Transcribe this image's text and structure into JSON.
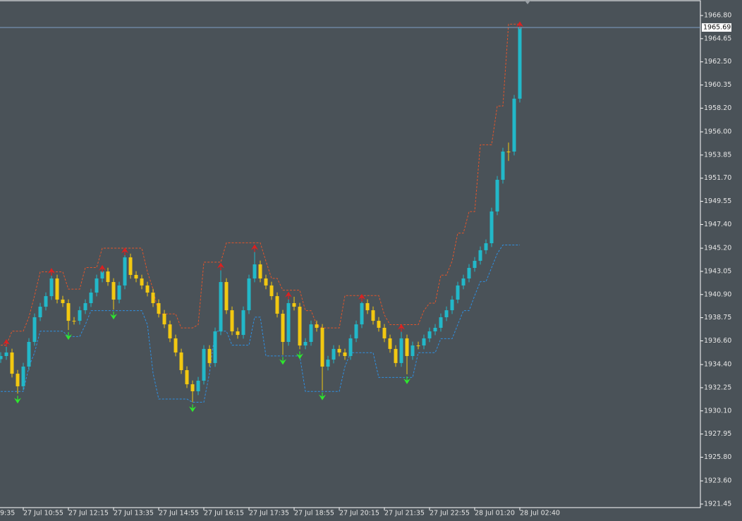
{
  "chart_data": {
    "type": "candlestick",
    "open": [
      1934.9,
      1935.19,
      1935.52,
      1933.55,
      1932.38,
      1934.21,
      1936.5,
      1938.79,
      1939.77,
      1940.75,
      1942.39,
      1940.43,
      1940.1,
      1938.46,
      1938.46,
      1939.44,
      1940.1,
      1941.08,
      1942.39,
      1943.04,
      1942.06,
      1940.43,
      1941.74,
      1944.35,
      1942.72,
      1942.39,
      1941.74,
      1941.08,
      1940.1,
      1939.12,
      1938.13,
      1936.83,
      1935.52,
      1933.88,
      1932.57,
      1931.92,
      1932.9,
      1935.85,
      1934.54,
      1937.48,
      1942.06,
      1939.44,
      1937.48,
      1937.15,
      1939.44,
      1942.39,
      1943.7,
      1942.39,
      1941.74,
      1940.75,
      1939.12,
      1936.5,
      1940.1,
      1939.77,
      1936.17,
      1936.5,
      1938.13,
      1937.81,
      1934.21,
      1934.86,
      1935.85,
      1935.52,
      1935.19,
      1936.83,
      1938.13,
      1940.1,
      1939.44,
      1938.46,
      1937.81,
      1936.83,
      1935.85,
      1934.54,
      1936.83,
      1935.19,
      1936.17,
      1936.17,
      1936.83,
      1937.48,
      1937.81,
      1938.79,
      1939.44,
      1940.43,
      1941.74,
      1942.39,
      1943.37,
      1944.03,
      1945.01,
      1945.66,
      1948.61,
      1951.55,
      1954.17,
      1954.17,
      1959.08
    ],
    "high": [
      1935.54,
      1936.5,
      1935.87,
      1933.9,
      1934.56,
      1936.85,
      1939.14,
      1940.12,
      1941.1,
      1943.1,
      1942.74,
      1940.78,
      1940.45,
      1938.81,
      1939.79,
      1940.45,
      1941.43,
      1942.74,
      1943.39,
      1943.39,
      1942.41,
      1942.09,
      1945.0,
      1944.7,
      1943.07,
      1942.74,
      1942.09,
      1941.43,
      1940.45,
      1939.47,
      1938.48,
      1937.18,
      1935.87,
      1934.23,
      1932.92,
      1933.25,
      1936.2,
      1936.2,
      1937.83,
      1943.6,
      1942.41,
      1939.79,
      1937.83,
      1939.79,
      1942.74,
      1945.3,
      1944.05,
      1942.74,
      1942.09,
      1941.1,
      1939.47,
      1940.9,
      1940.7,
      1940.12,
      1936.85,
      1938.48,
      1938.48,
      1938.16,
      1935.21,
      1936.2,
      1936.2,
      1935.87,
      1937.18,
      1938.48,
      1940.7,
      1940.45,
      1939.79,
      1938.81,
      1938.16,
      1937.18,
      1936.2,
      1937.9,
      1937.18,
      1936.52,
      1936.52,
      1937.18,
      1937.83,
      1938.16,
      1939.14,
      1939.79,
      1940.78,
      1942.09,
      1942.74,
      1943.72,
      1944.38,
      1945.36,
      1946.01,
      1948.96,
      1951.9,
      1954.52,
      1955.0,
      1959.43,
      1966.0
    ],
    "low": [
      1934.55,
      1934.84,
      1933.2,
      1931.7,
      1932.03,
      1933.86,
      1936.15,
      1938.44,
      1939.42,
      1940.4,
      1940.08,
      1939.75,
      1937.6,
      1938.11,
      1938.11,
      1939.09,
      1939.75,
      1940.73,
      1942.04,
      1941.71,
      1939.5,
      1940.08,
      1941.39,
      1942.37,
      1942.04,
      1941.39,
      1940.73,
      1939.75,
      1938.77,
      1937.78,
      1936.48,
      1935.17,
      1933.53,
      1932.22,
      1930.9,
      1931.57,
      1932.55,
      1934.19,
      1934.19,
      1937.13,
      1939.09,
      1937.13,
      1936.8,
      1936.8,
      1939.09,
      1942.04,
      1942.04,
      1941.39,
      1940.4,
      1938.77,
      1935.3,
      1936.15,
      1939.42,
      1935.82,
      1935.82,
      1936.15,
      1937.46,
      1932.0,
      1933.86,
      1934.51,
      1935.17,
      1934.84,
      1934.84,
      1936.48,
      1937.78,
      1939.09,
      1938.11,
      1937.46,
      1936.48,
      1935.5,
      1934.19,
      1934.19,
      1933.5,
      1934.84,
      1935.82,
      1935.82,
      1936.48,
      1937.13,
      1937.46,
      1938.44,
      1939.09,
      1940.08,
      1941.39,
      1942.04,
      1943.02,
      1943.68,
      1944.66,
      1945.31,
      1948.26,
      1951.2,
      1953.3,
      1953.82,
      1958.73
    ],
    "close": [
      1935.19,
      1935.52,
      1933.55,
      1932.38,
      1934.21,
      1936.5,
      1938.79,
      1939.77,
      1940.75,
      1942.39,
      1940.43,
      1940.1,
      1938.46,
      1938.46,
      1939.44,
      1940.1,
      1941.08,
      1942.39,
      1943.04,
      1942.06,
      1940.43,
      1941.74,
      1944.35,
      1942.72,
      1942.39,
      1941.74,
      1941.08,
      1940.1,
      1939.12,
      1938.13,
      1936.83,
      1935.52,
      1933.88,
      1932.57,
      1931.92,
      1932.9,
      1935.85,
      1934.54,
      1937.48,
      1942.06,
      1939.44,
      1937.48,
      1937.15,
      1939.44,
      1942.39,
      1943.7,
      1942.39,
      1941.74,
      1940.75,
      1939.12,
      1936.5,
      1940.1,
      1939.77,
      1936.17,
      1936.5,
      1938.13,
      1937.81,
      1934.21,
      1934.86,
      1935.85,
      1935.52,
      1935.19,
      1936.83,
      1938.13,
      1940.1,
      1939.44,
      1938.46,
      1937.81,
      1936.83,
      1935.85,
      1934.54,
      1936.83,
      1935.19,
      1936.17,
      1936.17,
      1936.83,
      1937.48,
      1937.81,
      1938.79,
      1939.44,
      1940.43,
      1941.74,
      1942.39,
      1943.37,
      1944.03,
      1945.01,
      1945.66,
      1948.61,
      1951.55,
      1954.17,
      1954.17,
      1959.08,
      1965.69
    ],
    "bull_color": "#22b8c9",
    "bear_color": "#f2c811",
    "lines": [
      {
        "color": "#e0552b",
        "values": [
          1936.2,
          1936.2,
          1937.5,
          1937.5,
          1937.5,
          1938.8,
          1940.8,
          1943.0,
          1943.0,
          1943.0,
          1943.0,
          1943.0,
          1941.4,
          1941.4,
          1941.4,
          1943.4,
          1943.4,
          1943.4,
          1945.2,
          1945.2,
          1945.2,
          1945.2,
          1945.2,
          1945.2,
          1945.2,
          1945.2,
          1943.0,
          1941.4,
          1939.1,
          1939.1,
          1939.1,
          1939.1,
          1937.8,
          1937.8,
          1937.8,
          1938.1,
          1943.9,
          1943.9,
          1943.9,
          1943.9,
          1945.7,
          1945.7,
          1945.7,
          1945.7,
          1945.7,
          1945.7,
          1945.7,
          1944.0,
          1942.4,
          1942.4,
          1941.3,
          1941.3,
          1941.3,
          1941.3,
          1939.4,
          1939.4,
          1938.1,
          1937.8,
          1937.8,
          1937.8,
          1937.8,
          1940.8,
          1940.8,
          1940.8,
          1940.8,
          1940.8,
          1940.8,
          1940.8,
          1939.0,
          1938.1,
          1938.1,
          1938.1,
          1938.1,
          1938.1,
          1938.1,
          1939.4,
          1940.1,
          1940.1,
          1942.7,
          1942.7,
          1944.0,
          1946.6,
          1946.6,
          1948.6,
          1948.6,
          1954.8,
          1954.8,
          1954.8,
          1958.4,
          1958.4,
          1966.0,
          1966.0,
          1966.0
        ]
      },
      {
        "color": "#2f8fe0",
        "values": [
          1931.9,
          1931.9,
          1931.9,
          1931.9,
          1931.9,
          1934.2,
          1935.5,
          1937.5,
          1937.5,
          1937.5,
          1937.5,
          1937.5,
          1937.0,
          1937.0,
          1937.0,
          1938.1,
          1939.4,
          1939.4,
          1939.4,
          1939.4,
          1939.4,
          1939.4,
          1939.4,
          1939.4,
          1939.4,
          1939.4,
          1938.1,
          1933.6,
          1931.2,
          1931.2,
          1931.2,
          1931.2,
          1931.2,
          1931.2,
          1930.9,
          1930.9,
          1930.9,
          1933.6,
          1937.5,
          1937.5,
          1937.5,
          1936.2,
          1936.2,
          1936.2,
          1936.2,
          1938.8,
          1938.8,
          1935.2,
          1935.2,
          1935.2,
          1935.2,
          1935.2,
          1935.2,
          1935.2,
          1931.9,
          1931.9,
          1931.9,
          1931.9,
          1931.9,
          1931.9,
          1931.9,
          1934.2,
          1935.5,
          1935.5,
          1935.5,
          1935.5,
          1935.5,
          1933.2,
          1933.2,
          1933.2,
          1933.2,
          1933.2,
          1933.2,
          1933.2,
          1935.5,
          1935.5,
          1935.5,
          1935.5,
          1936.8,
          1936.8,
          1936.8,
          1938.1,
          1939.4,
          1939.4,
          1940.8,
          1942.1,
          1942.1,
          1943.4,
          1944.7,
          1945.5,
          1945.5,
          1945.5,
          1945.5
        ]
      }
    ],
    "sell_signals": [
      1,
      9,
      18,
      22,
      39,
      45,
      51,
      64,
      71,
      92
    ],
    "buy_signals": [
      3,
      12,
      20,
      34,
      50,
      53,
      57,
      72
    ],
    "sell_color": "#e01e1e",
    "buy_color": "#2ee82e",
    "current_price": 1965.69,
    "price_line_color": "#7f9fc4",
    "xlim": [
      -0.125,
      124
    ],
    "xticks": [
      {
        "value": -4,
        "label": "9:35"
      },
      {
        "value": 4,
        "label": "27 Jul 10:55"
      },
      {
        "value": 12,
        "label": "27 Jul 12:15"
      },
      {
        "value": 20,
        "label": "27 Jul 13:35"
      },
      {
        "value": 28,
        "label": "27 Jul 14:55"
      },
      {
        "value": 36,
        "label": "27 Jul 16:15"
      },
      {
        "value": 44,
        "label": "27 Jul 17:35"
      },
      {
        "value": 52,
        "label": "27 Jul 18:55"
      },
      {
        "value": 60,
        "label": "27 Jul 20:15"
      },
      {
        "value": 68,
        "label": "27 Jul 21:35"
      },
      {
        "value": 76,
        "label": "27 Jul 22:55"
      },
      {
        "value": 84,
        "label": "28 Jul 01:20"
      },
      {
        "value": 92,
        "label": "28 Jul 02:40"
      }
    ],
    "ylim": [
      1921.12,
      1968.24
    ],
    "yticks": [
      1921.45,
      {
        "value": 1923.6,
        "label": "1923.60"
      },
      {
        "value": 1925.8,
        "label": "1925.80"
      },
      1927.95,
      {
        "value": 1930.1,
        "label": "1930.10"
      },
      1932.25,
      {
        "value": 1934.4,
        "label": "1934.40"
      },
      {
        "value": 1936.6,
        "label": "1936.60"
      },
      1938.75,
      {
        "value": 1940.9,
        "label": "1940.90"
      },
      1943.05,
      {
        "value": 1945.2,
        "label": "1945.20"
      },
      {
        "value": 1947.4,
        "label": "1947.40"
      },
      1949.55,
      {
        "value": 1951.7,
        "label": "1951.70"
      },
      1953.85,
      {
        "value": 1956,
        "label": "1956.00"
      },
      {
        "value": 1958.2,
        "label": "1958.20"
      },
      1960.35,
      {
        "value": 1962.5,
        "label": "1962.50"
      },
      1964.65,
      {
        "value": 1966.8,
        "label": "1966.80"
      }
    ]
  }
}
